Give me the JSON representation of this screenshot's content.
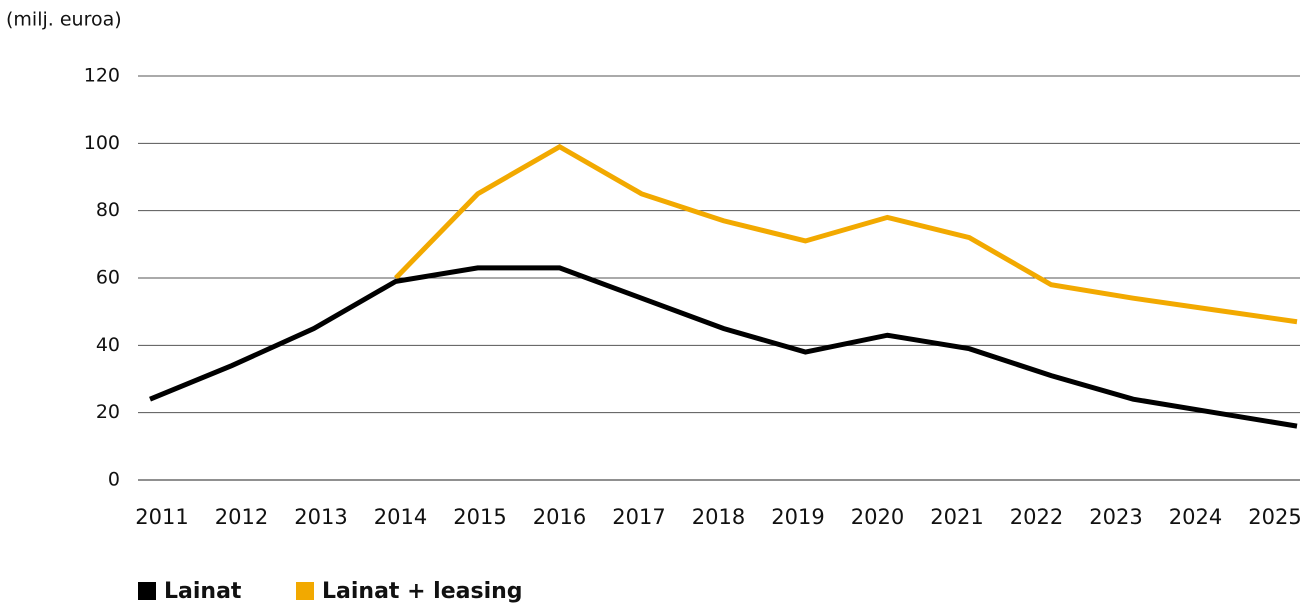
{
  "chart_data": {
    "type": "line",
    "y_label": "(milj. euroa)",
    "categories": [
      "2011",
      "2012",
      "2013",
      "2014",
      "2015",
      "2016",
      "2017",
      "2018",
      "2019",
      "2020",
      "2021",
      "2022",
      "2023",
      "2024",
      "2025"
    ],
    "series": [
      {
        "name": "Lainat",
        "color": "#000000",
        "values": [
          24,
          34,
          45,
          59,
          63,
          63,
          54,
          45,
          38,
          43,
          39,
          31,
          24,
          20,
          16
        ]
      },
      {
        "name": "Lainat + leasing",
        "color": "#f2a900",
        "values": [
          null,
          null,
          null,
          60,
          85,
          99,
          85,
          77,
          71,
          78,
          72,
          58,
          54,
          50.5,
          47
        ]
      }
    ],
    "ylim": [
      0,
      120
    ],
    "yticks": [
      0,
      20,
      40,
      60,
      80,
      100,
      120
    ],
    "grid": true
  }
}
